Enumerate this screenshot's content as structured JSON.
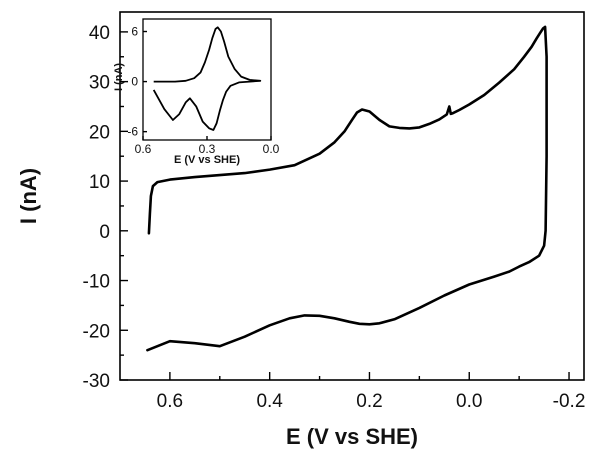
{
  "chart_data": [
    {
      "type": "line",
      "title": "",
      "xlabel": "E (V vs SHE)",
      "ylabel": "I (nA)",
      "xlim": [
        0.7,
        -0.23
      ],
      "ylim": [
        -30,
        44
      ],
      "x_ticks": [
        0.6,
        0.4,
        0.2,
        0.0,
        -0.2
      ],
      "x_tick_labels": [
        "0.6",
        "0.4",
        "0.2",
        "0.0",
        "-0.2"
      ],
      "y_ticks": [
        -30,
        -20,
        -10,
        0,
        10,
        20,
        30,
        40
      ],
      "y_tick_labels": [
        "-30",
        "-20",
        "-10",
        "0",
        "10",
        "20",
        "30",
        "40"
      ],
      "grid": false,
      "series": [
        {
          "color": "#000000",
          "x": [
            0.642,
            0.64,
            0.638,
            0.634,
            0.625,
            0.6,
            0.55,
            0.5,
            0.45,
            0.4,
            0.35,
            0.3,
            0.27,
            0.25,
            0.235,
            0.225,
            0.215,
            0.2,
            0.18,
            0.16,
            0.14,
            0.12,
            0.1,
            0.08,
            0.06,
            0.045,
            0.04,
            0.037,
            0.034,
            0.02,
            0.0,
            -0.03,
            -0.06,
            -0.09,
            -0.11,
            -0.125,
            -0.135,
            -0.142,
            -0.148,
            -0.152,
            -0.155,
            -0.155,
            -0.153,
            -0.15,
            -0.14,
            -0.12,
            -0.1,
            -0.08,
            -0.05,
            0.0,
            0.05,
            0.1,
            0.15,
            0.18,
            0.2,
            0.22,
            0.24,
            0.27,
            0.3,
            0.33,
            0.36,
            0.4,
            0.45,
            0.5,
            0.55,
            0.6,
            0.645
          ],
          "y": [
            -0.5,
            3.5,
            7.0,
            9.0,
            9.8,
            10.3,
            10.8,
            11.2,
            11.6,
            12.3,
            13.2,
            15.5,
            17.8,
            20.0,
            22.3,
            23.8,
            24.4,
            24.0,
            22.3,
            21.0,
            20.7,
            20.6,
            20.8,
            21.5,
            22.4,
            23.4,
            25.0,
            23.5,
            23.6,
            24.3,
            25.4,
            27.3,
            29.8,
            32.5,
            35.0,
            37.0,
            38.7,
            39.8,
            40.7,
            41.0,
            35.0,
            15.0,
            0.0,
            -3.0,
            -5.0,
            -6.3,
            -7.2,
            -8.2,
            -9.2,
            -10.8,
            -13.0,
            -15.5,
            -17.8,
            -18.6,
            -18.8,
            -18.7,
            -18.3,
            -17.6,
            -17.1,
            -17.0,
            -17.6,
            -19.0,
            -21.3,
            -23.2,
            -22.6,
            -22.2,
            -24.0
          ]
        }
      ]
    },
    {
      "type": "line",
      "title": "",
      "xlabel": "E (V vs SHE)",
      "ylabel": "I (nA)",
      "xlim": [
        0.6,
        0.0
      ],
      "ylim": [
        -7,
        7.5
      ],
      "x_ticks": [
        0.6,
        0.3,
        0.0
      ],
      "x_tick_labels": [
        "0.6",
        "0.3",
        "0.0"
      ],
      "y_ticks": [
        -6,
        0,
        6
      ],
      "y_tick_labels": [
        "-6",
        "0",
        "6"
      ],
      "grid": false,
      "series": [
        {
          "color": "#000000",
          "x": [
            0.55,
            0.45,
            0.4,
            0.36,
            0.33,
            0.31,
            0.29,
            0.275,
            0.26,
            0.25,
            0.235,
            0.22,
            0.2,
            0.17,
            0.14,
            0.1,
            0.05,
            0.1,
            0.15,
            0.19,
            0.21,
            0.225,
            0.24,
            0.255,
            0.27,
            0.29,
            0.32,
            0.35,
            0.38,
            0.4,
            0.43,
            0.46,
            0.5,
            0.55
          ],
          "y": [
            0.0,
            0.0,
            0.1,
            0.4,
            1.1,
            2.3,
            3.8,
            5.2,
            6.3,
            6.5,
            6.0,
            4.8,
            3.0,
            1.5,
            0.6,
            0.2,
            0.1,
            0.0,
            -0.1,
            -0.5,
            -1.2,
            -2.2,
            -3.5,
            -5.0,
            -5.8,
            -5.6,
            -4.8,
            -3.0,
            -2.0,
            -2.5,
            -3.9,
            -4.6,
            -3.3,
            -1.0
          ]
        }
      ]
    }
  ]
}
